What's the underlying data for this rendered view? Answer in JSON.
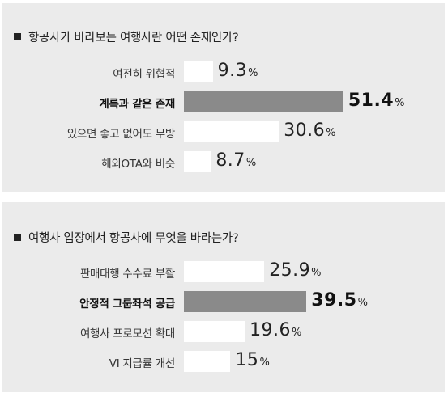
{
  "chart_data": [
    {
      "type": "bar",
      "orientation": "horizontal",
      "title": "항공사가 바라보는 여행사란 어떤 존재인가?",
      "categories": [
        "여전히 위협적",
        "계륵과 같은 존재",
        "있으면 좋고 없어도 무방",
        "해외OTA와 비슷"
      ],
      "values": [
        9.3,
        51.4,
        30.6,
        8.7
      ],
      "value_labels": [
        "9.3",
        "51.4",
        "30.6",
        "8.7"
      ],
      "unit": "%",
      "highlight_index": 1,
      "colors": {
        "bar": "#ffffff",
        "highlight": "#8a8a8a",
        "panel": "#ebebeb"
      }
    },
    {
      "type": "bar",
      "orientation": "horizontal",
      "title": "여행사 입장에서 항공사에 무엇을 바라는가?",
      "categories": [
        "판매대행 수수료 부활",
        "안정적 그룹좌석 공급",
        "여행사 프로모션 확대",
        "VI 지급률 개선"
      ],
      "values": [
        25.9,
        39.5,
        19.6,
        15
      ],
      "value_labels": [
        "25.9",
        "39.5",
        "19.6",
        "15"
      ],
      "unit": "%",
      "highlight_index": 1,
      "colors": {
        "bar": "#ffffff",
        "highlight": "#8a8a8a",
        "panel": "#ebebeb"
      }
    }
  ]
}
